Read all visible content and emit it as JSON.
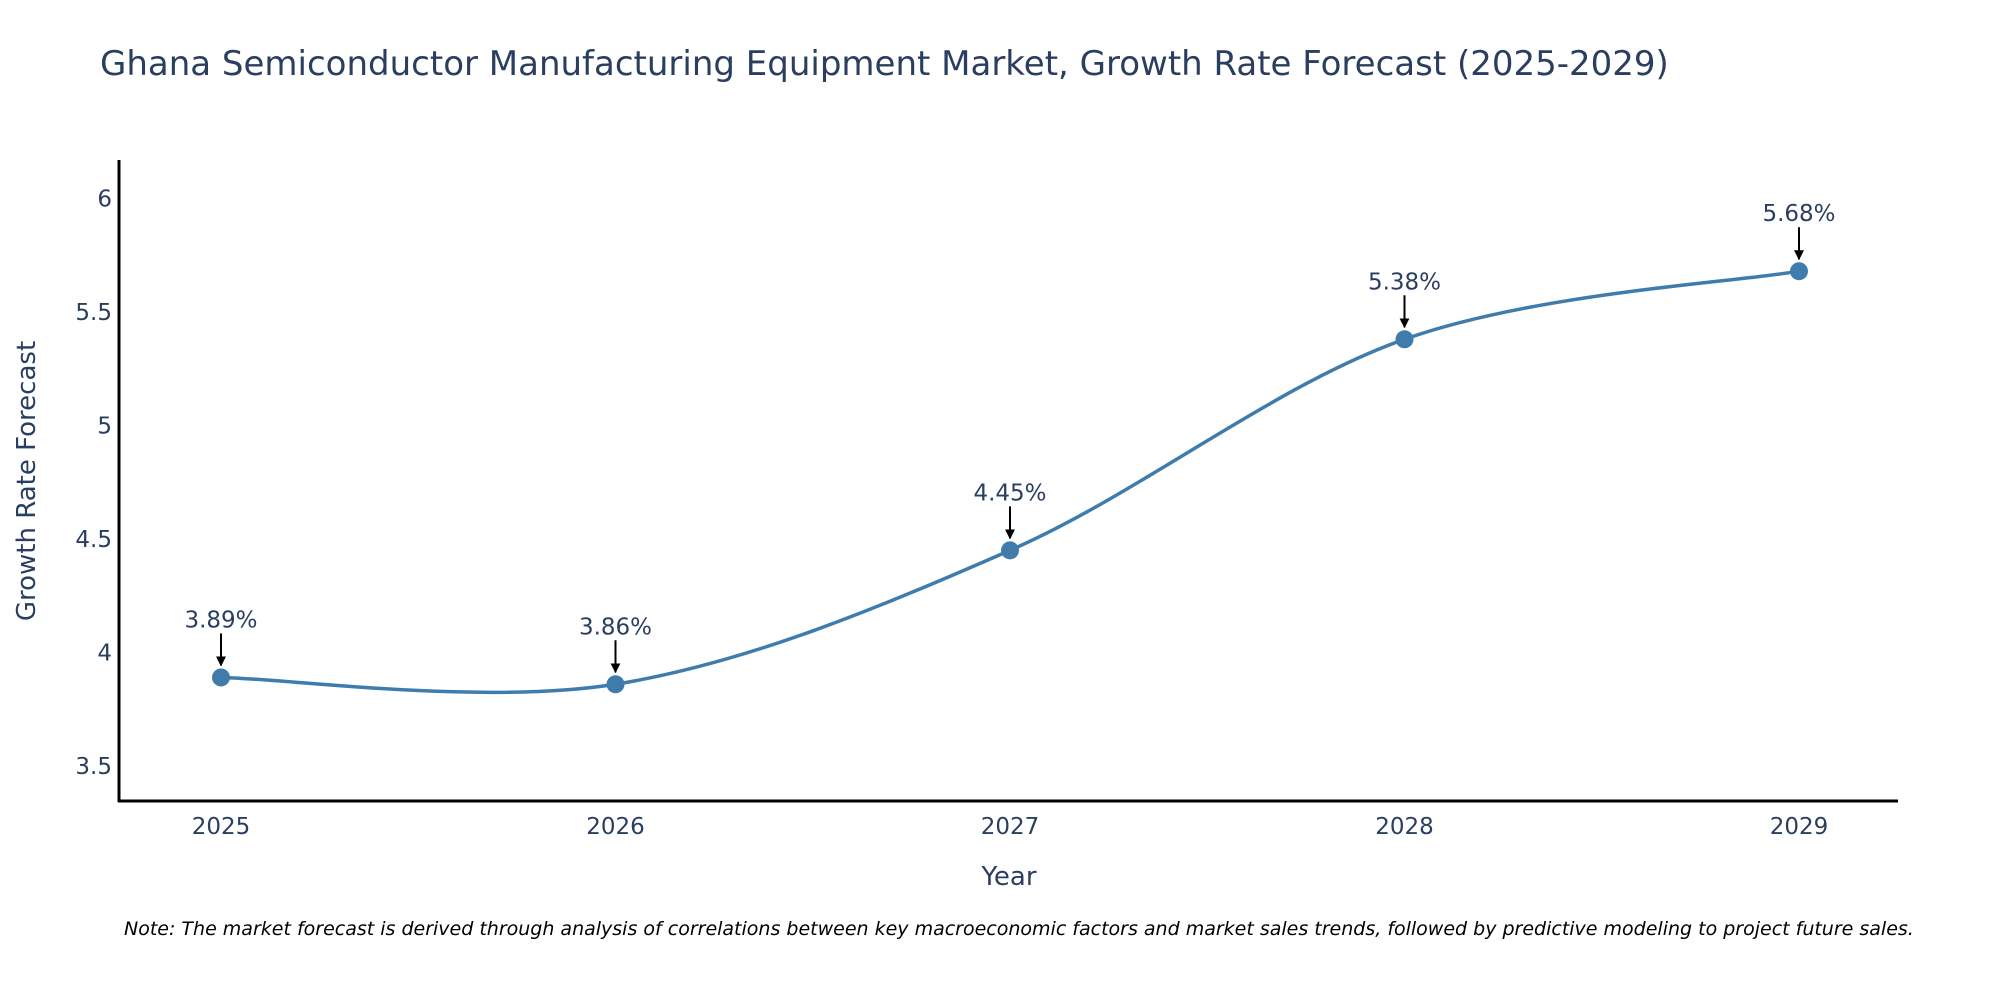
{
  "chart_data": {
    "type": "line",
    "title": "Ghana Semiconductor Manufacturing Equipment Market, Growth Rate Forecast (2025-2029)",
    "xlabel": "Year",
    "ylabel": "Growth Rate Forecast",
    "categories": [
      "2025",
      "2026",
      "2027",
      "2028",
      "2029"
    ],
    "values": [
      3.89,
      3.86,
      4.45,
      5.38,
      5.68
    ],
    "data_labels": [
      "3.89%",
      "3.86%",
      "4.45%",
      "5.38%",
      "5.68%"
    ],
    "ylim": [
      3.35,
      6.17
    ],
    "yticks": [
      3.5,
      4,
      4.5,
      5,
      5.5,
      6
    ],
    "ytick_labels": [
      "3.5",
      "4",
      "4.5",
      "5",
      "5.5",
      "6"
    ],
    "grid": false,
    "line_color": "#3f7cac",
    "text_color": "#2a3f5f",
    "annotation_arrows": true
  },
  "note": "Note: The market forecast is derived through analysis of correlations between key macroeconomic factors and market sales trends, followed by predictive modeling to project future sales."
}
